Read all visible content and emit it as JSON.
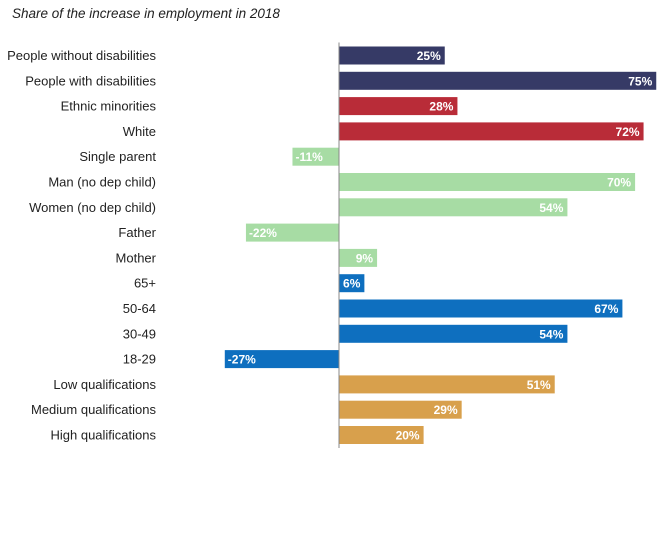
{
  "chart_data": {
    "type": "bar",
    "orientation": "horizontal",
    "title": "Share of the increase in employment in 2018",
    "value_format": "percent",
    "groups": [
      {
        "color": "#363a66",
        "label_color_inside": "#ffffff",
        "label_color_outside": "#363a66",
        "items": [
          {
            "category": "People without disabilities",
            "value": 25,
            "label": "25%"
          },
          {
            "category": "People with disabilities",
            "value": 75,
            "label": "75%"
          }
        ]
      },
      {
        "color": "#b92c38",
        "label_color_inside": "#ffffff",
        "label_color_outside": "#b92c38",
        "items": [
          {
            "category": "Ethnic minorities",
            "value": 28,
            "label": "28%"
          },
          {
            "category": "White",
            "value": 72,
            "label": "72%"
          }
        ]
      },
      {
        "color": "#a7dca4",
        "label_color_inside": "#ffffff",
        "label_color_outside": "#ffffff",
        "items": [
          {
            "category": "Single parent",
            "value": -11,
            "label": "-11%"
          },
          {
            "category": "Man (no dep child)",
            "value": 70,
            "label": "70%"
          },
          {
            "category": "Women (no dep child)",
            "value": 54,
            "label": "54%"
          },
          {
            "category": "Father",
            "value": -22,
            "label": "-22%"
          },
          {
            "category": "Mother",
            "value": 9,
            "label": "9%"
          }
        ]
      },
      {
        "color": "#0e6fbf",
        "label_color_inside": "#ffffff",
        "label_color_outside": "#0e6fbf",
        "items": [
          {
            "category": "65+",
            "value": 6,
            "label": "6%"
          },
          {
            "category": "50-64",
            "value": 67,
            "label": "67%"
          },
          {
            "category": "30-49",
            "value": 54,
            "label": "54%"
          },
          {
            "category": "18-29",
            "value": -27,
            "label": "-27%"
          }
        ]
      },
      {
        "color": "#d8a04c",
        "label_color_inside": "#ffffff",
        "label_color_outside": "#d8a04c",
        "items": [
          {
            "category": "Low qualifications",
            "value": 51,
            "label": "51%"
          },
          {
            "category": "Medium qualifications",
            "value": 29,
            "label": "29%"
          },
          {
            "category": "High qualifications",
            "value": 20,
            "label": "20%"
          }
        ]
      }
    ],
    "xlim": [
      -27,
      75
    ],
    "grid": false,
    "legend": "none"
  }
}
